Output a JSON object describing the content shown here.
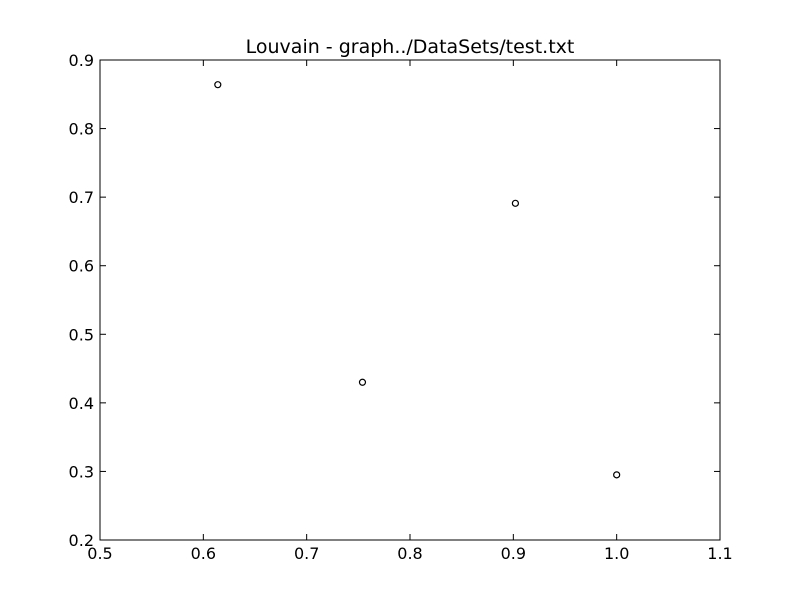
{
  "chart_data": {
    "type": "scatter",
    "title": "Louvain - graph../DataSets/test.txt",
    "xlabel": "",
    "ylabel": "",
    "xlim": [
      0.5,
      1.1
    ],
    "ylim": [
      0.2,
      0.9
    ],
    "x_ticks": [
      "0.5",
      "0.6",
      "0.7",
      "0.8",
      "0.9",
      "1.0",
      "1.1"
    ],
    "y_ticks": [
      "0.2",
      "0.3",
      "0.4",
      "0.5",
      "0.6",
      "0.7",
      "0.8",
      "0.9"
    ],
    "grid": false,
    "marker": "open-circle",
    "marker_color": "#000000",
    "series": [
      {
        "points": [
          {
            "x": 0.614,
            "y": 0.864
          },
          {
            "x": 0.754,
            "y": 0.43
          },
          {
            "x": 0.902,
            "y": 0.691
          },
          {
            "x": 1.0,
            "y": 0.295
          }
        ]
      }
    ]
  }
}
